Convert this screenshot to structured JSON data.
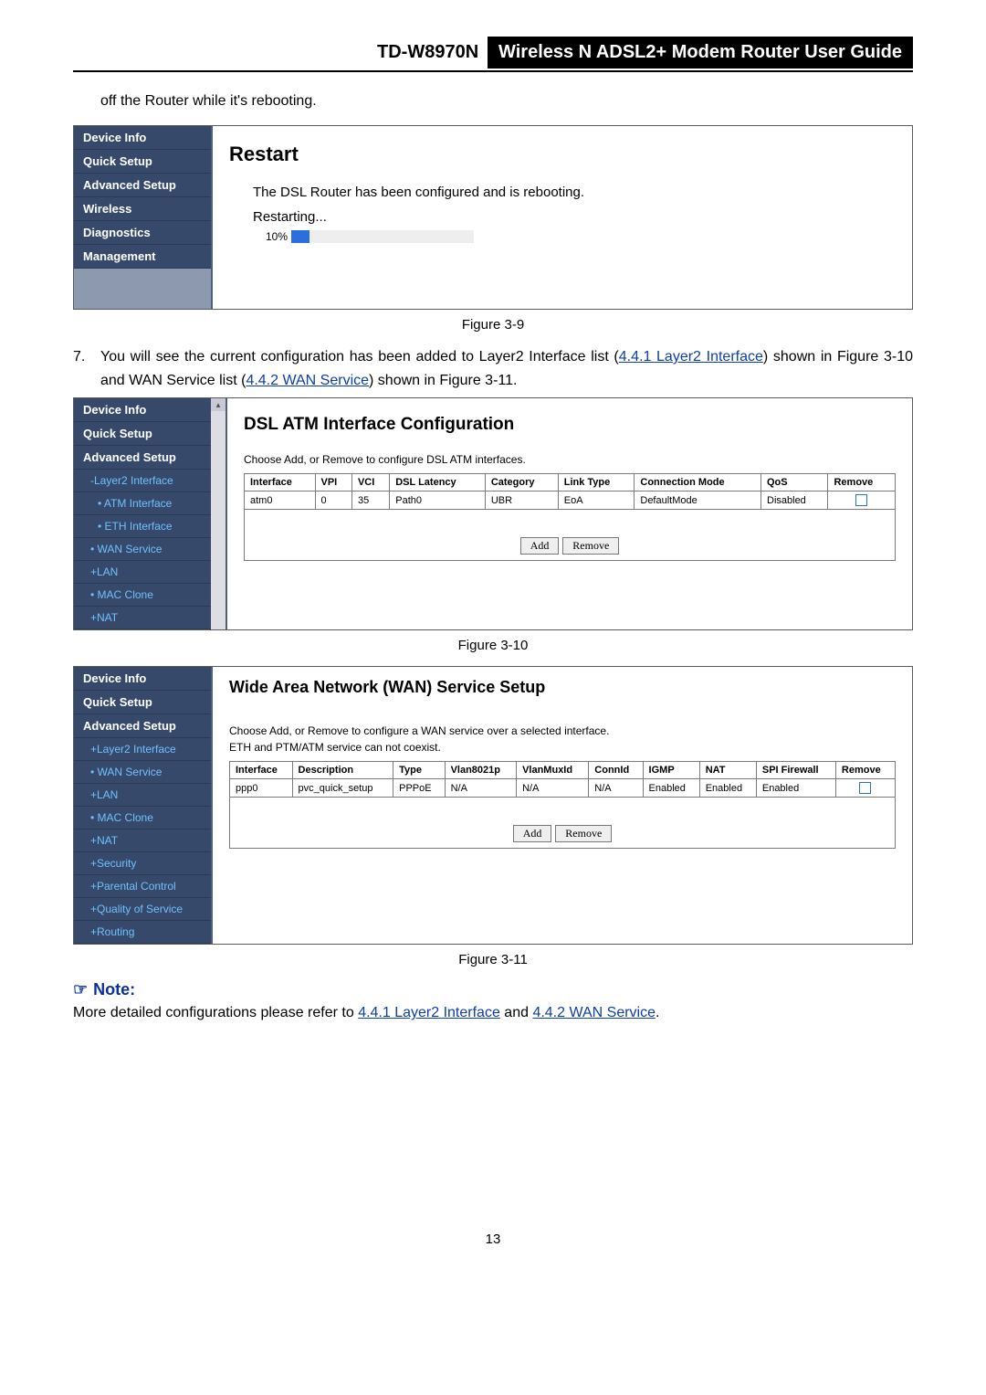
{
  "header": {
    "model": "TD-W8970N",
    "title": "Wireless N ADSL2+ Modem Router User Guide"
  },
  "intro_text": "off the Router while it's rebooting.",
  "fig9": {
    "caption": "Figure 3-9",
    "sidebar": [
      "Device Info",
      "Quick Setup",
      "Advanced Setup",
      "Wireless",
      "Diagnostics",
      "Management"
    ],
    "heading": "Restart",
    "msg": "The DSL Router has been configured and is rebooting.",
    "restarting": "Restarting...",
    "progress_label": "10%",
    "progress_pct": 10,
    "progress_fill_color": "#2a6fe0"
  },
  "para7": {
    "num": "7.",
    "pre": "You will see the current configuration has been added to Layer2 Interface list (",
    "link1": "4.4.1 Layer2 Interface",
    "mid1": ") shown in Figure 3-10 and WAN Service list (",
    "link2": "4.4.2 WAN Service",
    "mid2": ") shown in Figure 3-11."
  },
  "fig10": {
    "caption": "Figure 3-10",
    "sidebar": [
      {
        "label": "Device Info",
        "cls": ""
      },
      {
        "label": "Quick Setup",
        "cls": ""
      },
      {
        "label": "Advanced Setup",
        "cls": ""
      },
      {
        "label": "-Layer2 Interface",
        "cls": "sub hl"
      },
      {
        "label": "• ATM Interface",
        "cls": "sub sub2 hl"
      },
      {
        "label": "• ETH Interface",
        "cls": "sub sub2 hl"
      },
      {
        "label": "• WAN Service",
        "cls": "sub hl"
      },
      {
        "label": "+LAN",
        "cls": "sub hl"
      },
      {
        "label": "• MAC Clone",
        "cls": "sub hl"
      },
      {
        "label": "+NAT",
        "cls": "sub hl"
      }
    ],
    "heading": "DSL ATM Interface Configuration",
    "instr": "Choose Add, or Remove to configure DSL ATM interfaces.",
    "columns": [
      "Interface",
      "VPI",
      "VCI",
      "DSL Latency",
      "Category",
      "Link Type",
      "Connection Mode",
      "QoS",
      "Remove"
    ],
    "row": [
      "atm0",
      "0",
      "35",
      "Path0",
      "UBR",
      "EoA",
      "DefaultMode",
      "Disabled",
      ""
    ],
    "add": "Add",
    "remove": "Remove"
  },
  "fig11": {
    "caption": "Figure 3-11",
    "sidebar": [
      {
        "label": "Device Info",
        "cls": ""
      },
      {
        "label": "Quick Setup",
        "cls": ""
      },
      {
        "label": "Advanced Setup",
        "cls": ""
      },
      {
        "label": "+Layer2 Interface",
        "cls": "sub hl"
      },
      {
        "label": "• WAN Service",
        "cls": "sub hl"
      },
      {
        "label": "+LAN",
        "cls": "sub hl"
      },
      {
        "label": "• MAC Clone",
        "cls": "sub hl"
      },
      {
        "label": "+NAT",
        "cls": "sub hl"
      },
      {
        "label": "+Security",
        "cls": "sub hl"
      },
      {
        "label": "+Parental Control",
        "cls": "sub hl"
      },
      {
        "label": "+Quality of Service",
        "cls": "sub hl"
      },
      {
        "label": "+Routing",
        "cls": "sub hl"
      }
    ],
    "heading": "Wide Area Network (WAN) Service Setup",
    "instr1": "Choose Add, or Remove to configure a WAN service over a selected interface.",
    "instr2": "ETH and PTM/ATM service can not coexist.",
    "columns": [
      "Interface",
      "Description",
      "Type",
      "Vlan8021p",
      "VlanMuxId",
      "ConnId",
      "IGMP",
      "NAT",
      "SPI Firewall",
      "Remove"
    ],
    "row": [
      "ppp0",
      "pvc_quick_setup",
      "PPPoE",
      "N/A",
      "N/A",
      "N/A",
      "Enabled",
      "Enabled",
      "Enabled",
      ""
    ],
    "add": "Add",
    "remove": "Remove"
  },
  "note": {
    "icon": "☞",
    "label": "Note:",
    "pre": "More detailed configurations please refer to ",
    "link1": "4.4.1 Layer2 Interface",
    "mid": " and ",
    "link2": "4.4.2 WAN Service",
    "post": "."
  },
  "page_number": "13",
  "colors": {
    "sidebar_bg": "#37496b",
    "sidebar_fill": "#8c99ae",
    "link_color": "#0b3ea8",
    "note_color": "#0a2fa0"
  }
}
